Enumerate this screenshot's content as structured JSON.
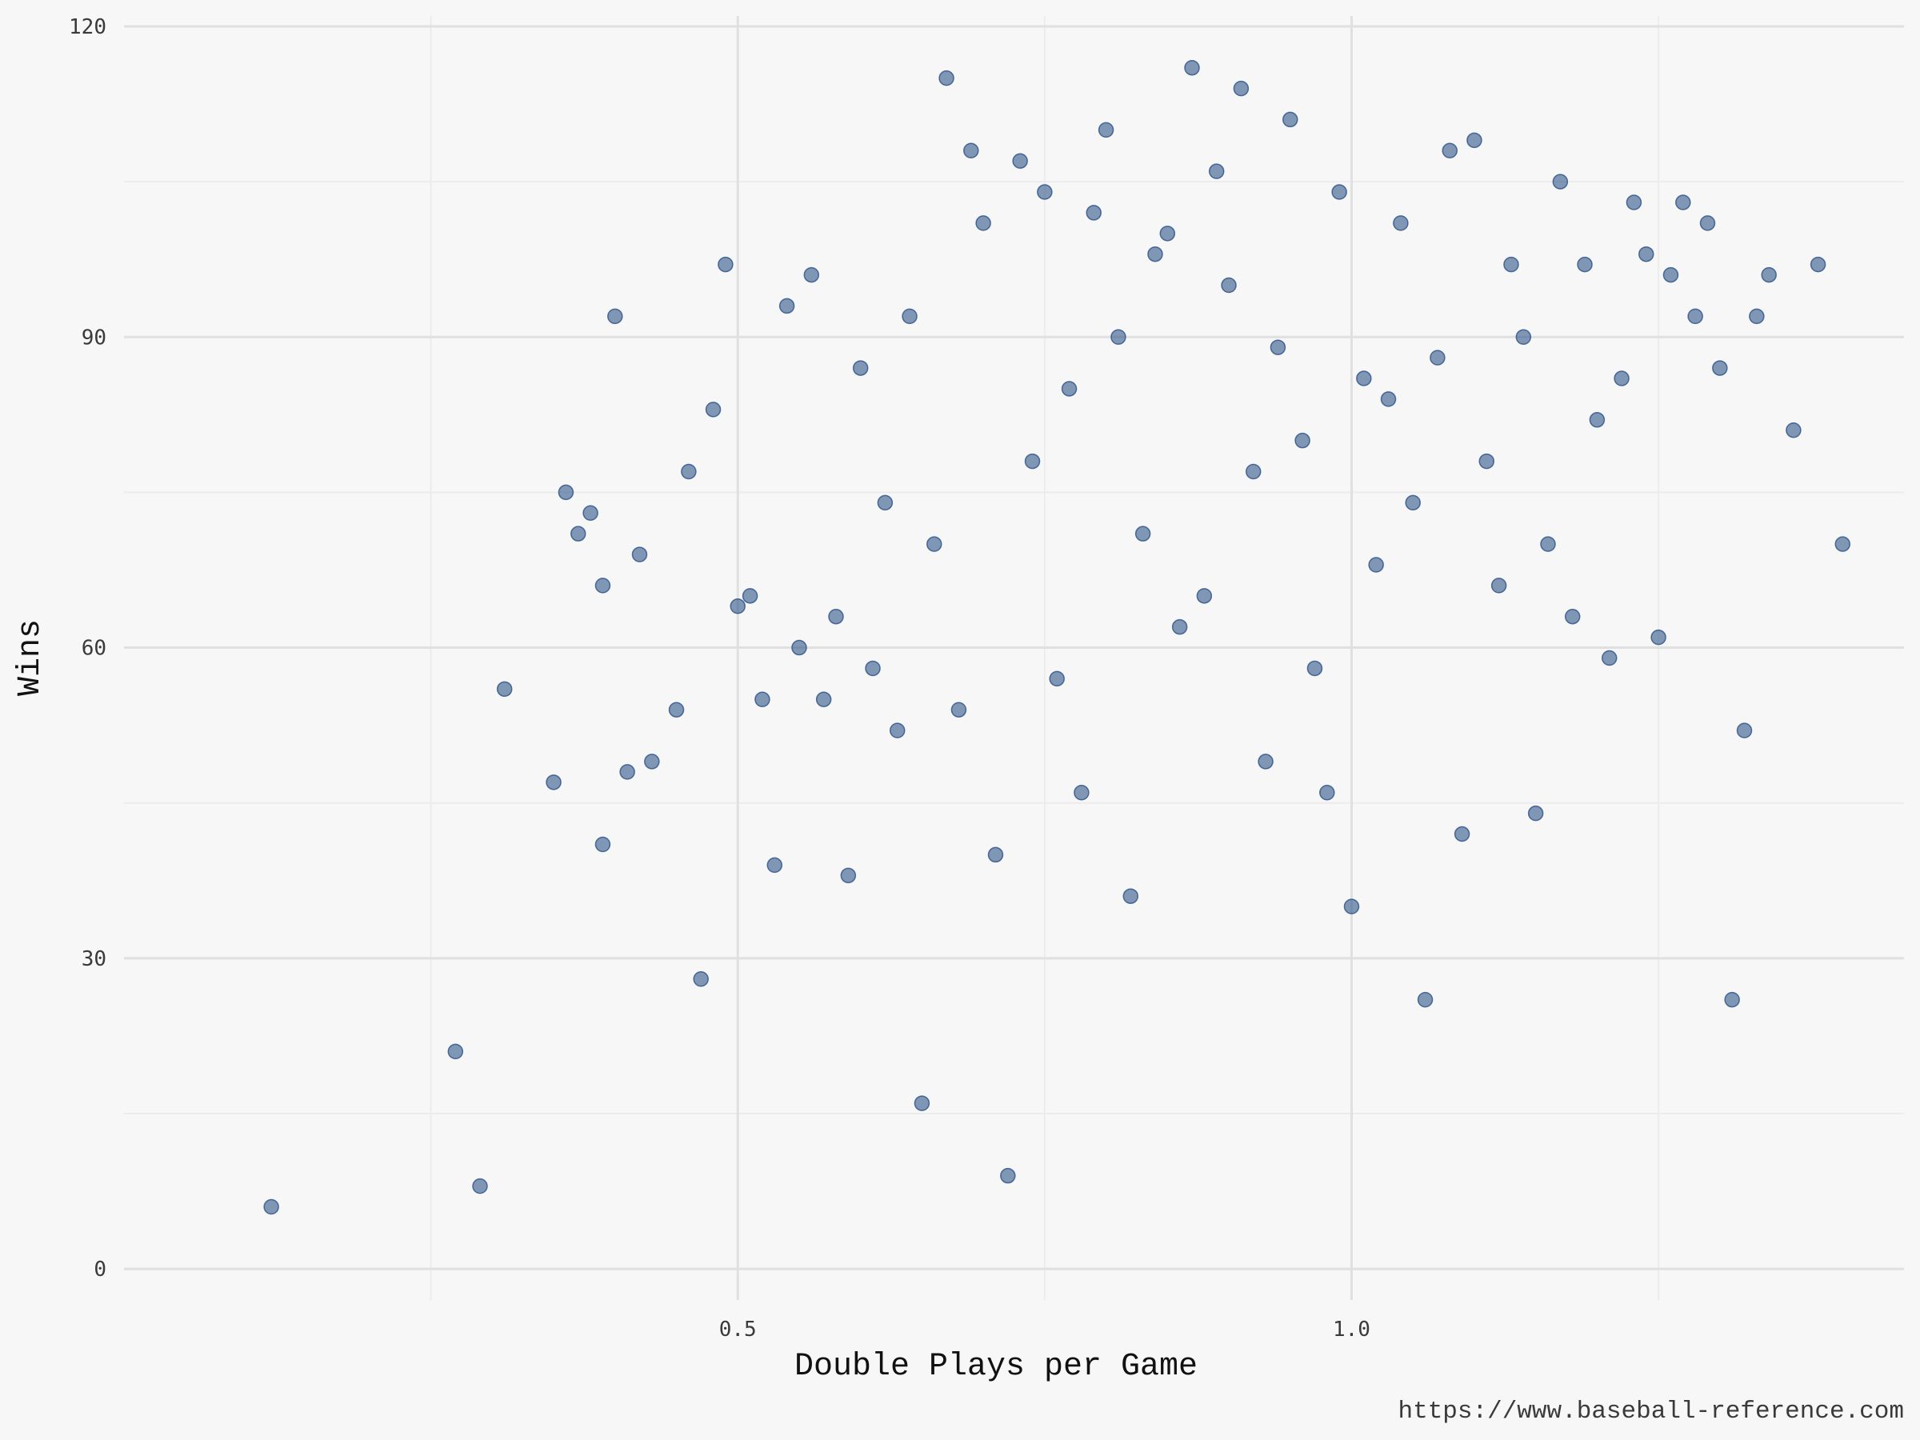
{
  "chart_data": {
    "type": "scatter",
    "title": "",
    "xlabel": "Double Plays per Game",
    "ylabel": "Wins",
    "caption": "https://www.baseball-reference.com",
    "xlim": [
      0.0,
      1.45
    ],
    "ylim": [
      -3,
      121
    ],
    "x_major_ticks": [
      0.5,
      1.0
    ],
    "x_major_tick_labels": [
      "0.5",
      "1.0"
    ],
    "x_minor_ticks": [
      0.25,
      0.75,
      1.25
    ],
    "y_major_ticks": [
      0,
      30,
      60,
      90,
      120
    ],
    "y_major_tick_labels": [
      "0",
      "30",
      "60",
      "90",
      "120"
    ],
    "y_minor_ticks": [
      15,
      45,
      75,
      105
    ],
    "grid": true,
    "legend": "none",
    "point_color": "#1f4780",
    "point_opacity": 0.55,
    "series": [
      {
        "x": [
          0.12,
          0.27,
          0.29,
          0.31,
          0.35,
          0.36,
          0.37,
          0.38,
          0.39,
          0.39,
          0.4,
          0.41,
          0.42,
          0.43,
          0.45,
          0.46,
          0.47,
          0.48,
          0.49,
          0.5,
          0.51,
          0.52,
          0.53,
          0.54,
          0.55,
          0.56,
          0.57,
          0.58,
          0.59,
          0.6,
          0.61,
          0.62,
          0.63,
          0.64,
          0.65,
          0.66,
          0.67,
          0.68,
          0.69,
          0.7,
          0.71,
          0.72,
          0.73,
          0.74,
          0.75,
          0.76,
          0.77,
          0.78,
          0.79,
          0.8,
          0.81,
          0.82,
          0.83,
          0.84,
          0.85,
          0.86,
          0.87,
          0.88,
          0.89,
          0.9,
          0.91,
          0.92,
          0.93,
          0.94,
          0.95,
          0.96,
          0.97,
          0.98,
          0.99,
          1.0,
          1.01,
          1.02,
          1.03,
          1.04,
          1.05,
          1.06,
          1.07,
          1.08,
          1.09,
          1.1,
          1.11,
          1.12,
          1.13,
          1.14,
          1.15,
          1.16,
          1.17,
          1.18,
          1.19,
          1.2,
          1.21,
          1.22,
          1.23,
          1.24,
          1.25,
          1.26,
          1.27,
          1.28,
          1.29,
          1.3,
          1.31,
          1.32,
          1.33,
          1.34,
          1.36,
          1.38,
          1.4
        ],
        "y": [
          6,
          21,
          8,
          56,
          47,
          75,
          71,
          73,
          66,
          41,
          92,
          48,
          69,
          49,
          54,
          77,
          28,
          83,
          97,
          64,
          65,
          55,
          39,
          93,
          60,
          96,
          55,
          63,
          38,
          87,
          58,
          74,
          52,
          92,
          16,
          70,
          115,
          54,
          108,
          101,
          40,
          9,
          107,
          78,
          104,
          57,
          85,
          46,
          102,
          110,
          90,
          36,
          71,
          98,
          100,
          62,
          116,
          65,
          106,
          95,
          114,
          77,
          49,
          89,
          111,
          80,
          58,
          46,
          104,
          35,
          86,
          68,
          84,
          101,
          74,
          26,
          88,
          108,
          42,
          109,
          78,
          66,
          97,
          90,
          44,
          70,
          105,
          63,
          97,
          82,
          59,
          86,
          103,
          98,
          61,
          96,
          103,
          92,
          101,
          87,
          26,
          52,
          92,
          96,
          81,
          97,
          70
        ]
      }
    ]
  }
}
